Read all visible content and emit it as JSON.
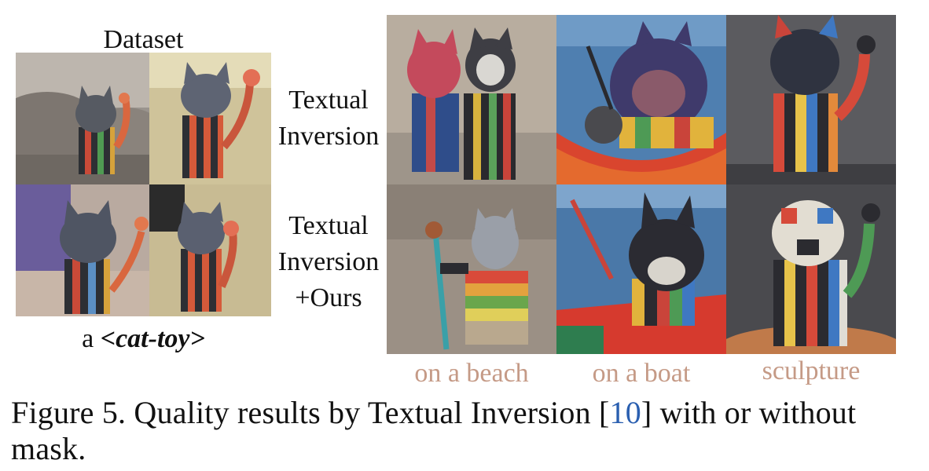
{
  "dataset": {
    "title": "Dataset",
    "caption_prefix": "a ",
    "caption_token": "<cat-toy>"
  },
  "rows": [
    {
      "lines": [
        "Textual",
        "Inversion"
      ]
    },
    {
      "lines": [
        "Textual",
        "Inversion",
        "+Ours"
      ]
    }
  ],
  "columns": [
    "on a beach",
    "on a boat",
    "sculpture"
  ],
  "caption": {
    "prefix": "Figure 5. Quality results by Textual Inversion [",
    "ref": "10",
    "suffix": "] with or without mask."
  },
  "colors": {
    "column_label": "#c59a86",
    "citation": "#2a5fb0"
  }
}
